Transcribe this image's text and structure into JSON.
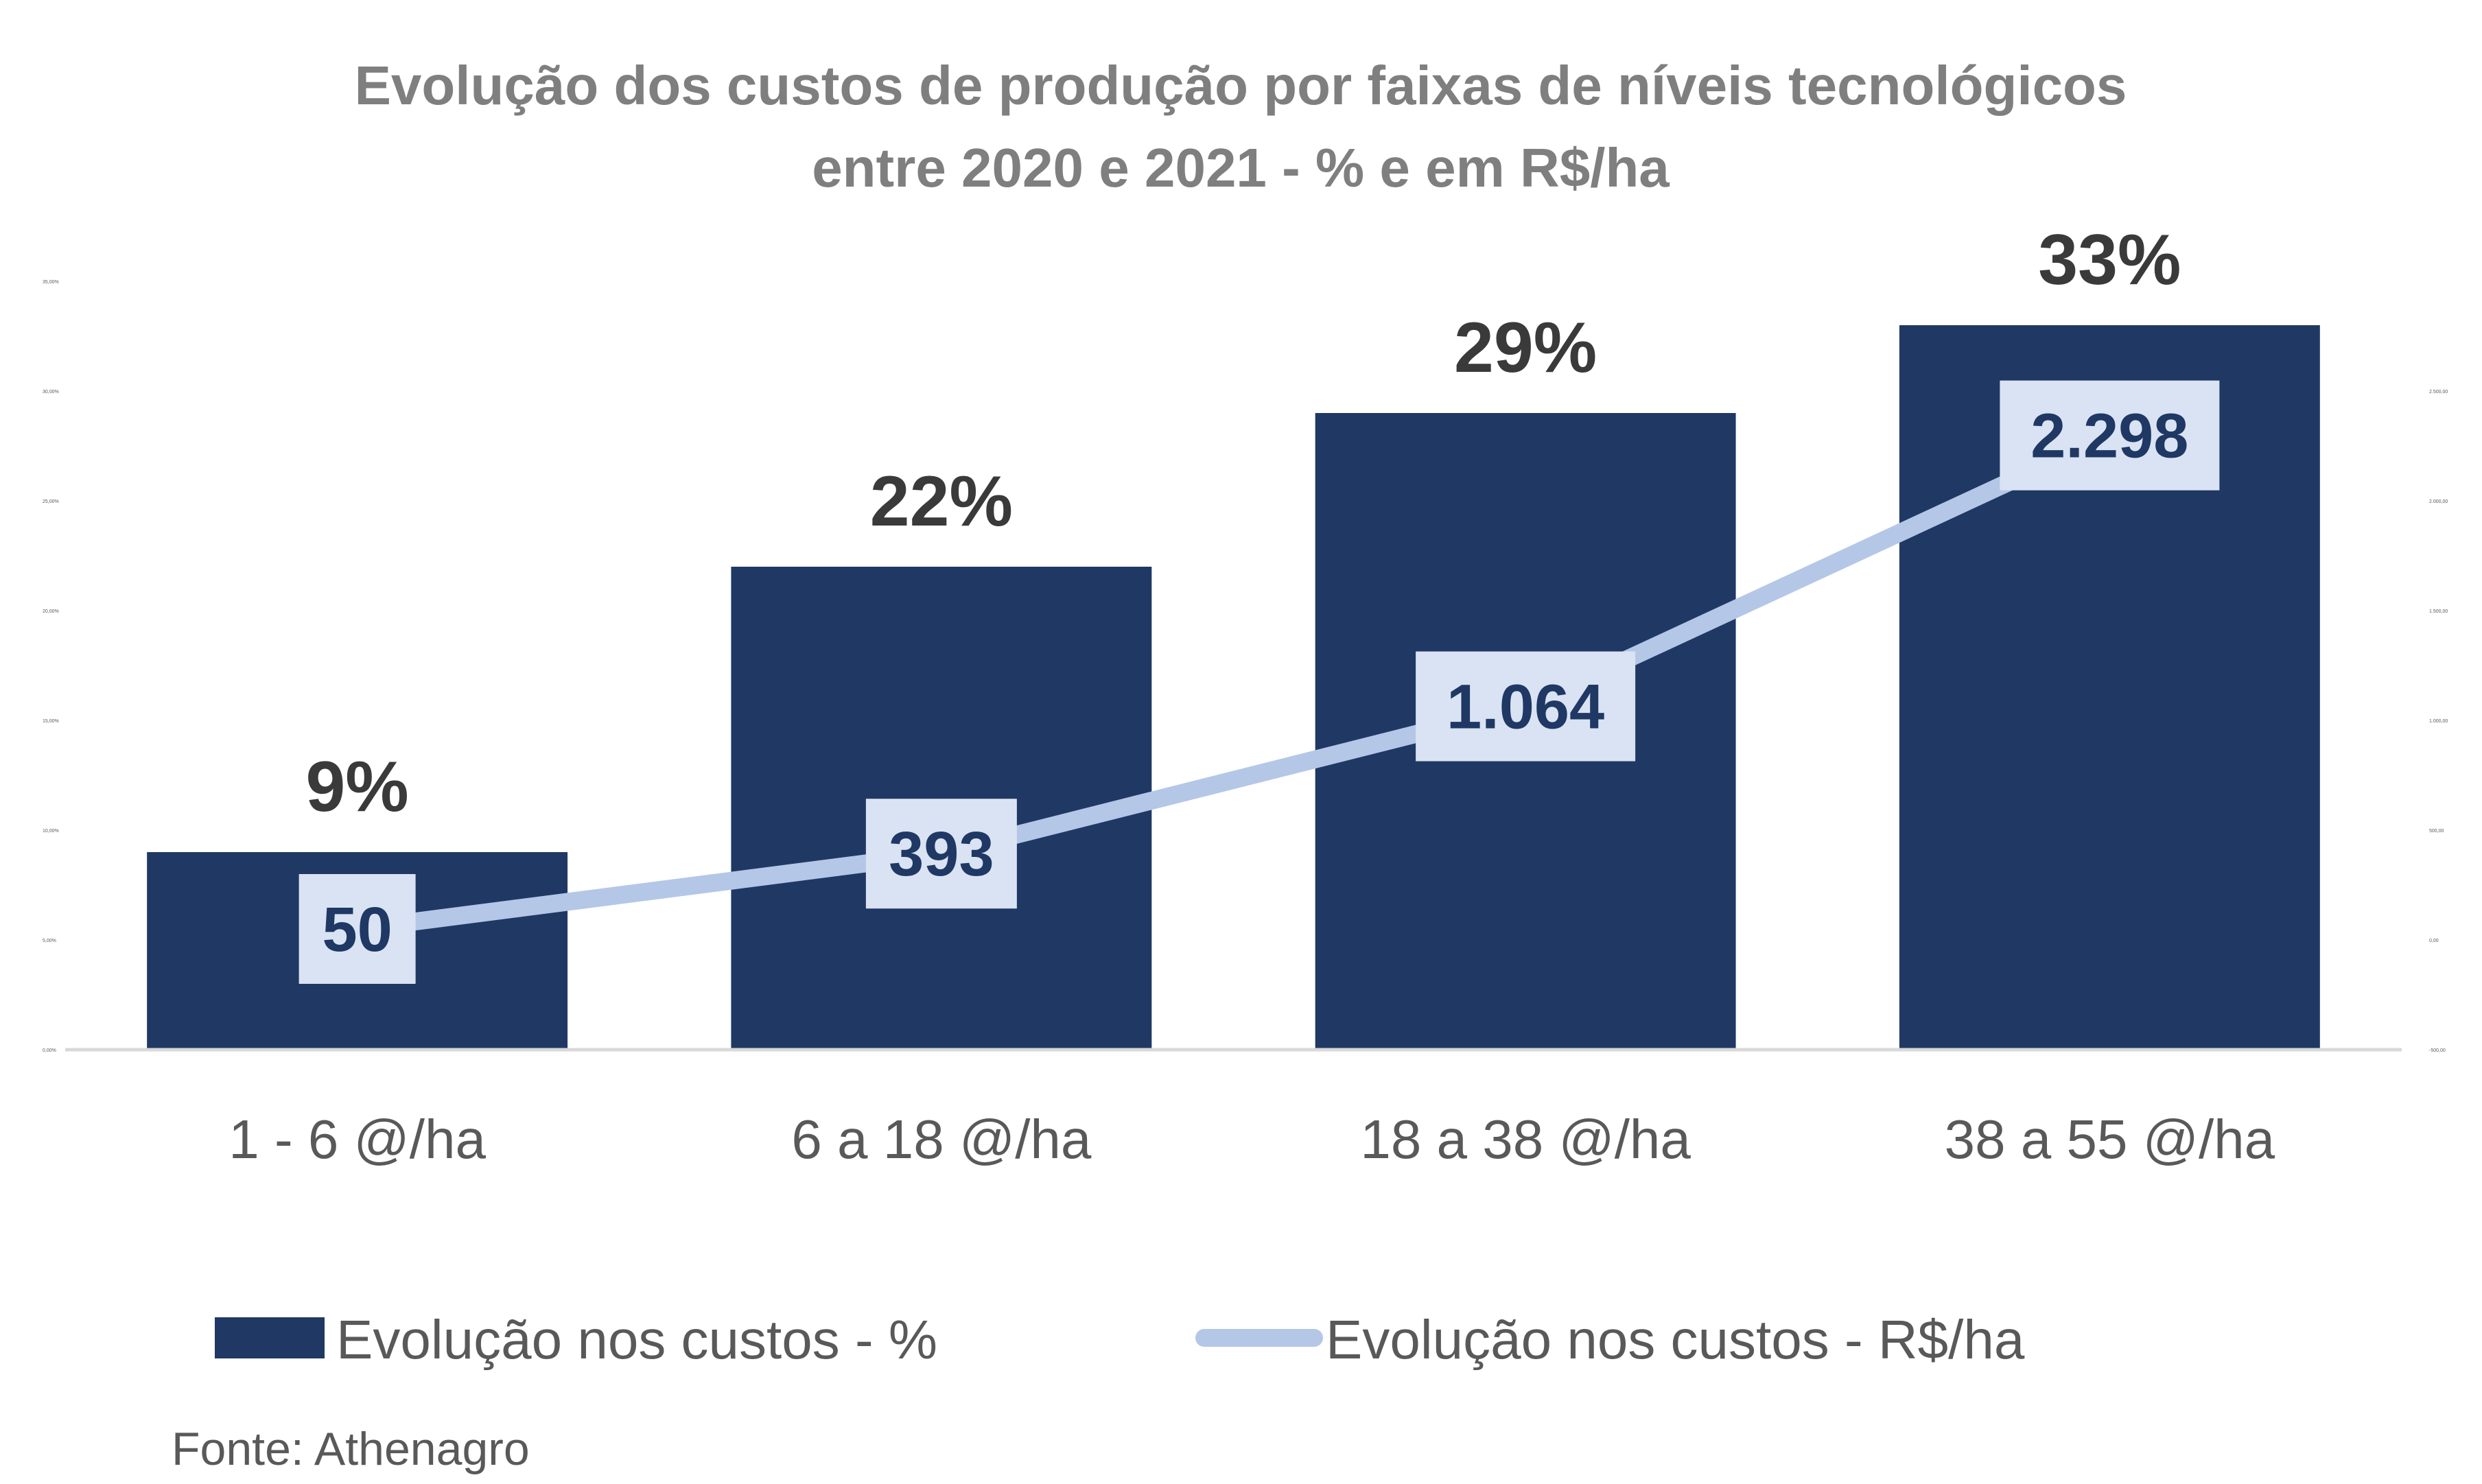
{
  "chart_data": {
    "type": "bar",
    "title": "Evolução dos custos de produção por faixas de níveis tecnológicos",
    "subtitle": "entre 2020 e 2021 - % e em R$/ha",
    "categories": [
      "1 - 6 @/ha",
      "6 a 18  @/ha",
      "18 a 38  @/ha",
      "38 a 55 @/ha"
    ],
    "series": [
      {
        "name": "Evolução nos custos - %",
        "type": "bar",
        "axis": "left",
        "values": [
          9,
          22,
          29,
          33
        ],
        "labels": [
          "9%",
          "22%",
          "29%",
          "33%"
        ],
        "color": "#203864"
      },
      {
        "name": "Evolução  nos custos - R$/ha",
        "type": "line",
        "axis": "right",
        "values": [
          50,
          393,
          1064,
          2298
        ],
        "labels": [
          "50",
          "393",
          "1.064",
          "2.298"
        ],
        "color": "#b4c7e7"
      }
    ],
    "ylim_left": [
      0,
      35
    ],
    "ylim_right": [
      -500,
      3000
    ],
    "y_left_ticks": [
      "0,00%",
      "5,00%",
      "10,00%",
      "15,00%",
      "20,00%",
      "25,00%",
      "30,00%",
      "35,00%"
    ],
    "y_right_ticks": [
      "-500,00",
      "0,00",
      "500,00",
      "1.000,00",
      "1.500,00",
      "2.000,00",
      "2.500,00"
    ],
    "grid": false,
    "legend": "bottom",
    "source": "Fonte: Athenagro"
  }
}
